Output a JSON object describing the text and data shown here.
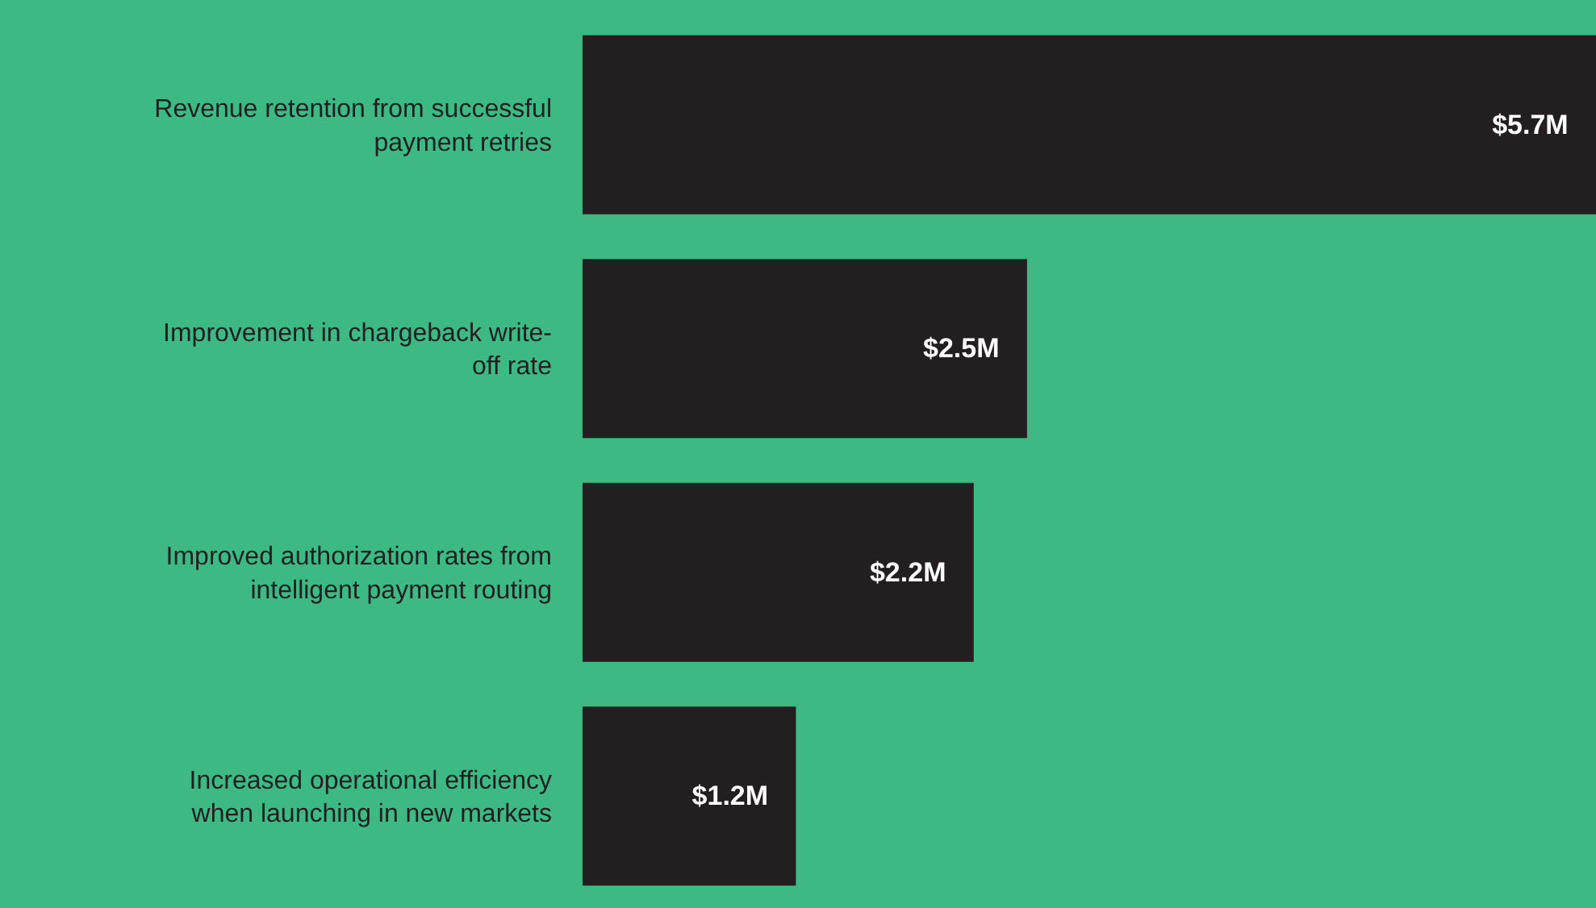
{
  "chart_data": {
    "type": "bar",
    "orientation": "horizontal",
    "categories": [
      "Revenue retention from successful payment retries",
      "Improvement in chargeback write-off rate",
      "Improved authorization rates from intelligent payment routing",
      "Increased operational efficiency when launching in new markets"
    ],
    "values": [
      5.7,
      2.5,
      2.2,
      1.2
    ],
    "value_labels": [
      "$5.7M",
      "$2.5M",
      "$2.2M",
      "$1.2M"
    ],
    "color": "#231f20",
    "xlim": [
      0,
      5.7
    ],
    "grid": false
  }
}
